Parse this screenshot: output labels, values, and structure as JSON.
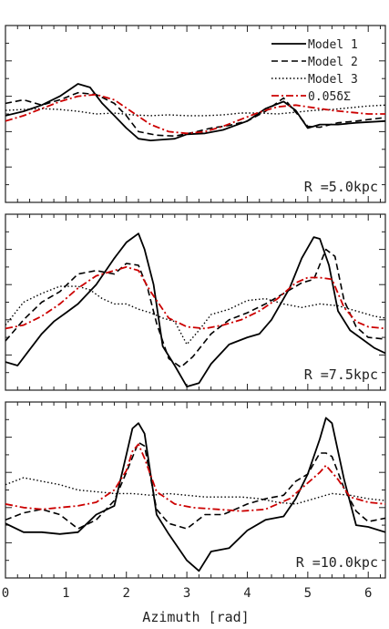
{
  "chart_data": {
    "type": "line",
    "xlabel": "Azimuth [rad]",
    "xlim": [
      0,
      6.283
    ],
    "xticks": [
      0,
      1,
      2,
      3,
      4,
      5,
      6
    ],
    "legend": {
      "placement": "top-right",
      "panel": 0
    },
    "styles": {
      "Model 1": {
        "color": "#000000",
        "dash": "",
        "width": 1.8
      },
      "Model 2": {
        "color": "#000000",
        "dash": "7,4",
        "width": 1.6
      },
      "Model 3": {
        "color": "#000000",
        "dash": "1.5,2.5",
        "width": 1.4
      },
      "0.05δΣ": {
        "color": "#cc0000",
        "dash": "8,3,2,3",
        "width": 1.8
      }
    },
    "panels": [
      {
        "label": "R =5.0kpc",
        "ylim": [
          0,
          10
        ],
        "series": [
          {
            "name": "Model 1",
            "x": [
              0,
              0.3,
              0.6,
              0.9,
              1.2,
              1.4,
              1.6,
              1.8,
              2.0,
              2.2,
              2.4,
              2.6,
              2.8,
              3.0,
              3.3,
              3.6,
              4.0,
              4.3,
              4.6,
              4.8,
              5.0,
              5.2,
              5.5,
              5.8,
              6.283
            ],
            "y": [
              4.9,
              5.15,
              5.5,
              6.0,
              6.7,
              6.5,
              5.6,
              4.9,
              4.2,
              3.6,
              3.5,
              3.55,
              3.6,
              3.85,
              3.9,
              4.1,
              4.6,
              5.3,
              5.7,
              5.2,
              4.2,
              4.4,
              4.4,
              4.5,
              4.6
            ]
          },
          {
            "name": "Model 2",
            "x": [
              0,
              0.3,
              0.6,
              0.9,
              1.2,
              1.5,
              1.8,
              2.0,
              2.2,
              2.5,
              2.8,
              3.1,
              3.4,
              3.7,
              4.0,
              4.3,
              4.6,
              4.8,
              5.0,
              5.2,
              5.5,
              5.8,
              6.283
            ],
            "y": [
              5.6,
              5.8,
              5.5,
              5.8,
              6.2,
              6.1,
              5.6,
              4.9,
              4.0,
              3.8,
              3.75,
              3.95,
              4.2,
              4.35,
              4.6,
              5.15,
              5.9,
              5.1,
              4.3,
              4.25,
              4.5,
              4.6,
              4.8
            ]
          },
          {
            "name": "Model 3",
            "x": [
              0,
              0.3,
              0.6,
              0.9,
              1.2,
              1.5,
              1.8,
              2.1,
              2.4,
              2.7,
              3.0,
              3.3,
              3.6,
              3.9,
              4.2,
              4.5,
              4.8,
              5.1,
              5.4,
              5.7,
              6.0,
              6.283
            ],
            "y": [
              5.2,
              5.25,
              5.3,
              5.25,
              5.15,
              5.0,
              5.05,
              4.95,
              4.9,
              4.95,
              4.9,
              4.9,
              4.95,
              5.05,
              5.05,
              5.0,
              5.1,
              5.2,
              5.25,
              5.35,
              5.45,
              5.5
            ]
          },
          {
            "name": "0.05δΣ",
            "x": [
              0,
              0.3,
              0.6,
              0.9,
              1.2,
              1.5,
              1.8,
              2.1,
              2.4,
              2.7,
              3.0,
              3.3,
              3.6,
              3.9,
              4.2,
              4.5,
              4.8,
              5.1,
              5.4,
              5.7,
              6.0,
              6.283
            ],
            "y": [
              4.6,
              4.9,
              5.3,
              5.7,
              6.0,
              6.1,
              5.8,
              5.1,
              4.4,
              4.0,
              3.9,
              4.0,
              4.3,
              4.7,
              5.1,
              5.4,
              5.5,
              5.35,
              5.2,
              5.1,
              5.0,
              5.0
            ]
          }
        ]
      },
      {
        "label": "R =7.5kpc",
        "ylim": [
          0,
          10
        ],
        "series": [
          {
            "name": "Model 1",
            "x": [
              0,
              0.2,
              0.4,
              0.6,
              0.8,
              1.0,
              1.2,
              1.5,
              1.8,
              2.0,
              2.2,
              2.3,
              2.45,
              2.6,
              2.8,
              3.0,
              3.2,
              3.4,
              3.7,
              4.0,
              4.2,
              4.4,
              4.7,
              4.9,
              5.1,
              5.2,
              5.35,
              5.5,
              5.7,
              5.9,
              6.1,
              6.283
            ],
            "y": [
              1.6,
              1.4,
              2.3,
              3.2,
              3.9,
              4.4,
              4.9,
              6.0,
              7.5,
              8.4,
              8.9,
              8.0,
              6.0,
              2.5,
              1.4,
              0.2,
              0.4,
              1.5,
              2.6,
              3.0,
              3.2,
              4.0,
              5.8,
              7.5,
              8.7,
              8.6,
              7.1,
              4.5,
              3.4,
              2.9,
              2.4,
              2.1
            ]
          },
          {
            "name": "Model 2",
            "x": [
              0,
              0.3,
              0.6,
              0.9,
              1.2,
              1.5,
              1.8,
              2.0,
              2.2,
              2.35,
              2.5,
              2.7,
              2.9,
              3.1,
              3.4,
              3.7,
              4.0,
              4.3,
              4.6,
              4.9,
              5.1,
              5.3,
              5.45,
              5.6,
              5.8,
              6.0,
              6.283
            ],
            "y": [
              2.8,
              4.0,
              5.0,
              5.6,
              6.6,
              6.8,
              6.6,
              7.2,
              7.1,
              5.8,
              3.8,
              1.8,
              1.3,
              1.9,
              3.2,
              4.0,
              4.4,
              4.9,
              5.5,
              6.1,
              6.3,
              8.0,
              7.6,
              5.1,
              3.6,
              3.0,
              2.9
            ]
          },
          {
            "name": "Model 3",
            "x": [
              0,
              0.3,
              0.6,
              0.9,
              1.2,
              1.4,
              1.6,
              1.8,
              2.0,
              2.2,
              2.4,
              2.6,
              2.8,
              3.0,
              3.2,
              3.4,
              3.7,
              4.0,
              4.3,
              4.6,
              4.9,
              5.2,
              5.5,
              5.8,
              6.1,
              6.283
            ],
            "y": [
              3.7,
              5.0,
              5.5,
              5.9,
              5.9,
              5.7,
              5.2,
              4.9,
              4.9,
              4.6,
              4.4,
              4.1,
              3.9,
              2.6,
              3.4,
              4.3,
              4.6,
              5.1,
              5.2,
              4.9,
              4.7,
              4.9,
              4.8,
              4.5,
              4.2,
              4.1
            ]
          },
          {
            "name": "0.05δΣ",
            "x": [
              0,
              0.3,
              0.6,
              0.9,
              1.2,
              1.5,
              1.8,
              2.0,
              2.2,
              2.4,
              2.7,
              3.0,
              3.3,
              3.6,
              3.9,
              4.2,
              4.5,
              4.8,
              5.0,
              5.2,
              5.4,
              5.6,
              5.8,
              6.0,
              6.283
            ],
            "y": [
              3.5,
              3.7,
              4.2,
              4.9,
              5.8,
              6.5,
              6.8,
              7.0,
              6.8,
              5.6,
              4.1,
              3.6,
              3.5,
              3.7,
              4.0,
              4.5,
              5.2,
              6.1,
              6.4,
              6.4,
              6.3,
              4.7,
              3.9,
              3.6,
              3.5
            ]
          }
        ]
      },
      {
        "label": "R =10.0kpc",
        "ylim": [
          0,
          10
        ],
        "series": [
          {
            "name": "Model 1",
            "x": [
              0,
              0.3,
              0.6,
              0.9,
              1.2,
              1.5,
              1.8,
              2.0,
              2.1,
              2.2,
              2.3,
              2.5,
              2.7,
              3.0,
              3.2,
              3.4,
              3.7,
              4.0,
              4.3,
              4.6,
              4.8,
              5.0,
              5.2,
              5.3,
              5.4,
              5.6,
              5.8,
              6.0,
              6.283
            ],
            "y": [
              3.1,
              2.6,
              2.6,
              2.5,
              2.6,
              3.6,
              4.1,
              7.0,
              8.5,
              8.8,
              8.2,
              3.6,
              2.5,
              1.0,
              0.4,
              1.5,
              1.7,
              2.7,
              3.3,
              3.5,
              4.5,
              5.9,
              7.9,
              9.1,
              8.8,
              5.6,
              3.0,
              2.9,
              2.6
            ]
          },
          {
            "name": "Model 2",
            "x": [
              0,
              0.3,
              0.6,
              0.9,
              1.2,
              1.5,
              1.8,
              2.0,
              2.2,
              2.3,
              2.5,
              2.7,
              3.0,
              3.3,
              3.6,
              4.0,
              4.3,
              4.6,
              4.8,
              5.0,
              5.2,
              5.3,
              5.4,
              5.6,
              5.8,
              6.0,
              6.283
            ],
            "y": [
              3.3,
              3.7,
              3.9,
              3.6,
              2.8,
              3.3,
              4.4,
              6.0,
              7.7,
              7.5,
              3.9,
              3.1,
              2.8,
              3.6,
              3.6,
              4.2,
              4.5,
              4.7,
              5.5,
              5.9,
              7.1,
              7.1,
              6.9,
              5.1,
              3.8,
              3.2,
              3.4
            ]
          },
          {
            "name": "Model 3",
            "x": [
              0,
              0.3,
              0.6,
              0.9,
              1.2,
              1.5,
              1.8,
              2.1,
              2.4,
              2.7,
              3.0,
              3.3,
              3.6,
              3.9,
              4.2,
              4.5,
              4.8,
              5.0,
              5.2,
              5.4,
              5.7,
              6.0,
              6.283
            ],
            "y": [
              5.3,
              5.7,
              5.5,
              5.3,
              5.0,
              4.9,
              4.8,
              4.8,
              4.7,
              4.8,
              4.7,
              4.6,
              4.6,
              4.6,
              4.5,
              4.3,
              4.2,
              4.4,
              4.6,
              4.8,
              4.7,
              4.5,
              4.4
            ]
          },
          {
            "name": "0.05δΣ",
            "x": [
              0,
              0.3,
              0.6,
              0.9,
              1.2,
              1.5,
              1.8,
              2.0,
              2.1,
              2.2,
              2.3,
              2.5,
              2.8,
              3.1,
              3.5,
              3.9,
              4.3,
              4.7,
              5.0,
              5.2,
              5.3,
              5.5,
              5.7,
              6.0,
              6.283
            ],
            "y": [
              4.2,
              4.0,
              3.9,
              4.0,
              4.1,
              4.3,
              5.0,
              6.1,
              7.2,
              7.6,
              6.8,
              4.9,
              4.2,
              4.0,
              3.9,
              3.8,
              3.9,
              4.5,
              5.4,
              6.0,
              6.4,
              5.6,
              4.6,
              4.3,
              4.2
            ]
          }
        ]
      }
    ]
  }
}
